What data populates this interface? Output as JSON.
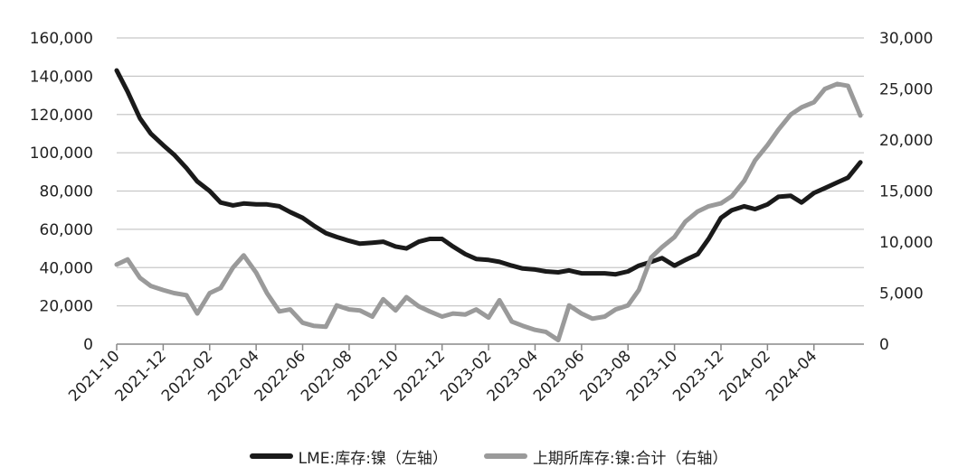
{
  "chart_data": {
    "type": "line",
    "title": "",
    "xlabel": "",
    "ylabel": "",
    "x_ticks": [
      "2021-10",
      "2021-12",
      "2022-02",
      "2022-04",
      "2022-06",
      "2022-08",
      "2022-10",
      "2022-12",
      "2023-02",
      "2023-04",
      "2023-06",
      "2023-08",
      "2023-10",
      "2023-12",
      "2024-02",
      "2024-04"
    ],
    "y_left": {
      "lim": [
        0,
        160000
      ],
      "ticks": [
        "0",
        "20,000",
        "40,000",
        "60,000",
        "80,000",
        "100,000",
        "120,000",
        "140,000",
        "160,000"
      ]
    },
    "y_right": {
      "lim": [
        0,
        30000
      ],
      "ticks": [
        "0",
        "5,000",
        "10,000",
        "15,000",
        "20,000",
        "25,000",
        "30,000"
      ]
    },
    "grid": true,
    "legend_position": "bottom",
    "series": [
      {
        "name": "LME:库存:镍（左轴）",
        "axis": "left",
        "color": "#1a1a1a",
        "points": [
          [
            "2021-10",
            143000
          ],
          [
            "2021-10-15",
            132000
          ],
          [
            "2021-11",
            118000
          ],
          [
            "2021-11-15",
            110000
          ],
          [
            "2021-12",
            104000
          ],
          [
            "2021-12-15",
            99000
          ],
          [
            "2022-01",
            92000
          ],
          [
            "2022-01-15",
            85000
          ],
          [
            "2022-02",
            80000
          ],
          [
            "2022-02-15",
            74000
          ],
          [
            "2022-03",
            72500
          ],
          [
            "2022-03-15",
            73500
          ],
          [
            "2022-04",
            73000
          ],
          [
            "2022-04-15",
            73000
          ],
          [
            "2022-05",
            72000
          ],
          [
            "2022-05-15",
            69000
          ],
          [
            "2022-06",
            66000
          ],
          [
            "2022-06-15",
            62000
          ],
          [
            "2022-07",
            58000
          ],
          [
            "2022-07-15",
            56000
          ],
          [
            "2022-08",
            54000
          ],
          [
            "2022-08-15",
            52500
          ],
          [
            "2022-09",
            53000
          ],
          [
            "2022-09-15",
            53500
          ],
          [
            "2022-10",
            51000
          ],
          [
            "2022-10-15",
            50000
          ],
          [
            "2022-11",
            53500
          ],
          [
            "2022-11-15",
            55000
          ],
          [
            "2022-12",
            55000
          ],
          [
            "2022-12-15",
            51000
          ],
          [
            "2023-01",
            47000
          ],
          [
            "2023-01-15",
            44500
          ],
          [
            "2023-02",
            44000
          ],
          [
            "2023-02-15",
            43000
          ],
          [
            "2023-03",
            41000
          ],
          [
            "2023-03-15",
            39500
          ],
          [
            "2023-04",
            39000
          ],
          [
            "2023-04-15",
            38000
          ],
          [
            "2023-05",
            37500
          ],
          [
            "2023-05-15",
            38500
          ],
          [
            "2023-06",
            37000
          ],
          [
            "2023-06-15",
            37000
          ],
          [
            "2023-07",
            37000
          ],
          [
            "2023-07-15",
            36500
          ],
          [
            "2023-08",
            38000
          ],
          [
            "2023-08-15",
            41000
          ],
          [
            "2023-09",
            43000
          ],
          [
            "2023-09-15",
            45000
          ],
          [
            "2023-10",
            41000
          ],
          [
            "2023-10-15",
            44000
          ],
          [
            "2023-11",
            47000
          ],
          [
            "2023-11-15",
            55000
          ],
          [
            "2023-12",
            66000
          ],
          [
            "2023-12-15",
            70000
          ],
          [
            "2024-01",
            72000
          ],
          [
            "2024-01-15",
            70500
          ],
          [
            "2024-02",
            73000
          ],
          [
            "2024-02-15",
            77000
          ],
          [
            "2024-03",
            77500
          ],
          [
            "2024-03-15",
            74000
          ],
          [
            "2024-04",
            79000
          ],
          [
            "2024-04-15",
            81500
          ],
          [
            "2024-05",
            84500
          ],
          [
            "2024-05-15",
            87000
          ],
          [
            "2024-06",
            95000
          ]
        ]
      },
      {
        "name": "上期所库存:镍:合计（右轴）",
        "axis": "right",
        "color": "#9a9a9a",
        "points": [
          [
            "2021-10",
            7800
          ],
          [
            "2021-10-15",
            8300
          ],
          [
            "2021-11",
            6500
          ],
          [
            "2021-11-15",
            5700
          ],
          [
            "2021-12",
            5300
          ],
          [
            "2021-12-15",
            5000
          ],
          [
            "2022-01",
            4800
          ],
          [
            "2022-01-15",
            3000
          ],
          [
            "2022-02",
            5000
          ],
          [
            "2022-02-15",
            5500
          ],
          [
            "2022-03",
            7500
          ],
          [
            "2022-03-15",
            8700
          ],
          [
            "2022-04",
            7000
          ],
          [
            "2022-04-15",
            5000
          ],
          [
            "2022-05",
            3200
          ],
          [
            "2022-05-15",
            3400
          ],
          [
            "2022-06",
            2100
          ],
          [
            "2022-06-15",
            1800
          ],
          [
            "2022-07",
            1700
          ],
          [
            "2022-07-15",
            3800
          ],
          [
            "2022-08",
            3400
          ],
          [
            "2022-08-15",
            3300
          ],
          [
            "2022-09",
            2700
          ],
          [
            "2022-09-15",
            4400
          ],
          [
            "2022-10",
            3300
          ],
          [
            "2022-10-15",
            4600
          ],
          [
            "2022-11",
            3700
          ],
          [
            "2022-11-15",
            3200
          ],
          [
            "2022-12",
            2700
          ],
          [
            "2022-12-15",
            3000
          ],
          [
            "2023-01",
            2900
          ],
          [
            "2023-01-15",
            3400
          ],
          [
            "2023-02",
            2600
          ],
          [
            "2023-02-15",
            4300
          ],
          [
            "2023-03",
            2200
          ],
          [
            "2023-03-15",
            1800
          ],
          [
            "2023-04",
            1400
          ],
          [
            "2023-04-15",
            1200
          ],
          [
            "2023-05",
            400
          ],
          [
            "2023-05-15",
            3800
          ],
          [
            "2023-06",
            3000
          ],
          [
            "2023-06-15",
            2500
          ],
          [
            "2023-07",
            2700
          ],
          [
            "2023-07-15",
            3400
          ],
          [
            "2023-08",
            3800
          ],
          [
            "2023-08-15",
            5300
          ],
          [
            "2023-09",
            8500
          ],
          [
            "2023-09-15",
            9500
          ],
          [
            "2023-10",
            10500
          ],
          [
            "2023-10-15",
            12000
          ],
          [
            "2023-11",
            13000
          ],
          [
            "2023-11-15",
            13500
          ],
          [
            "2023-12",
            13800
          ],
          [
            "2023-12-15",
            14500
          ],
          [
            "2024-01",
            16000
          ],
          [
            "2024-01-15",
            18000
          ],
          [
            "2024-02",
            19500
          ],
          [
            "2024-02-15",
            21000
          ],
          [
            "2024-03",
            22500
          ],
          [
            "2024-03-15",
            23200
          ],
          [
            "2024-04",
            23700
          ],
          [
            "2024-04-15",
            25000
          ],
          [
            "2024-05",
            25500
          ],
          [
            "2024-05-15",
            25300
          ],
          [
            "2024-06",
            22400
          ]
        ]
      }
    ]
  }
}
